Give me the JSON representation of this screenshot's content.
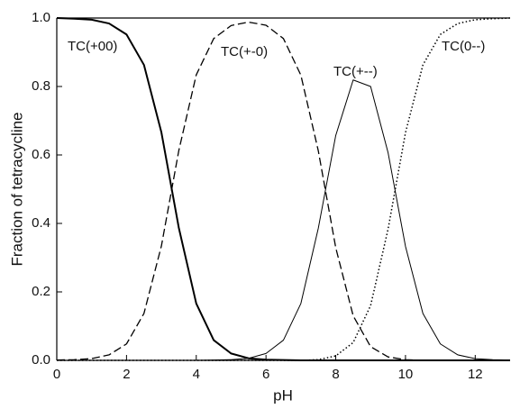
{
  "chart_data": {
    "type": "line",
    "x_label": "pH",
    "y_label": "Fraction of tetracycline",
    "x": [
      0,
      0.5,
      1,
      1.5,
      2,
      2.5,
      3,
      3.5,
      4,
      4.5,
      5,
      5.5,
      6,
      6.5,
      7,
      7.5,
      8,
      8.5,
      9,
      9.5,
      10,
      10.5,
      11,
      11.5,
      12,
      12.5,
      13
    ],
    "series": [
      {
        "name": "TC(+00)",
        "color": "#000000",
        "line_style": "thick",
        "values": [
          1.0,
          0.998,
          0.995,
          0.984,
          0.952,
          0.863,
          0.666,
          0.387,
          0.166,
          0.059,
          0.02,
          0.006,
          0.002,
          0.001,
          0.0,
          0.0,
          0.0,
          0.0,
          0.0,
          0.0,
          0.0,
          0.0,
          0.0,
          0.0,
          0.0,
          0.0,
          0.0
        ]
      },
      {
        "name": "TC(+-0)",
        "color": "#000000",
        "line_style": "dashed",
        "values": [
          0.001,
          0.002,
          0.005,
          0.016,
          0.048,
          0.137,
          0.334,
          0.613,
          0.834,
          0.94,
          0.978,
          0.988,
          0.979,
          0.94,
          0.833,
          0.612,
          0.329,
          0.13,
          0.04,
          0.01,
          0.002,
          0.0,
          0.0,
          0.0,
          0.0,
          0.0,
          0.0
        ]
      },
      {
        "name": "TC(+--)",
        "color": "#000000",
        "line_style": "thin",
        "values": [
          0.0,
          0.0,
          0.0,
          0.0,
          0.0,
          0.0,
          0.0,
          0.0,
          0.0,
          0.001,
          0.002,
          0.006,
          0.02,
          0.059,
          0.166,
          0.386,
          0.657,
          0.819,
          0.8,
          0.607,
          0.333,
          0.137,
          0.048,
          0.016,
          0.005,
          0.002,
          0.001
        ]
      },
      {
        "name": "TC(0--)",
        "color": "#000000",
        "line_style": "dotted",
        "values": [
          0.0,
          0.0,
          0.0,
          0.0,
          0.0,
          0.0,
          0.0,
          0.0,
          0.0,
          0.0,
          0.0,
          0.0,
          0.0,
          0.0,
          0.0,
          0.002,
          0.013,
          0.052,
          0.16,
          0.383,
          0.665,
          0.863,
          0.952,
          0.984,
          0.995,
          0.998,
          1.0
        ]
      }
    ],
    "xlim": [
      0,
      13
    ],
    "ylim": [
      0,
      1
    ],
    "xticks": [
      0,
      2,
      4,
      6,
      8,
      10,
      12
    ],
    "yticks": [
      {
        "value": 0,
        "label": "0.0"
      },
      {
        "value": 0.2,
        "label": "0.2"
      },
      {
        "value": 0.4,
        "label": "0.4"
      },
      {
        "value": 0.6,
        "label": "0.6"
      },
      {
        "value": 0.8,
        "label": "0.8"
      },
      {
        "value": 1,
        "label": "1.0"
      }
    ],
    "grid": false
  }
}
